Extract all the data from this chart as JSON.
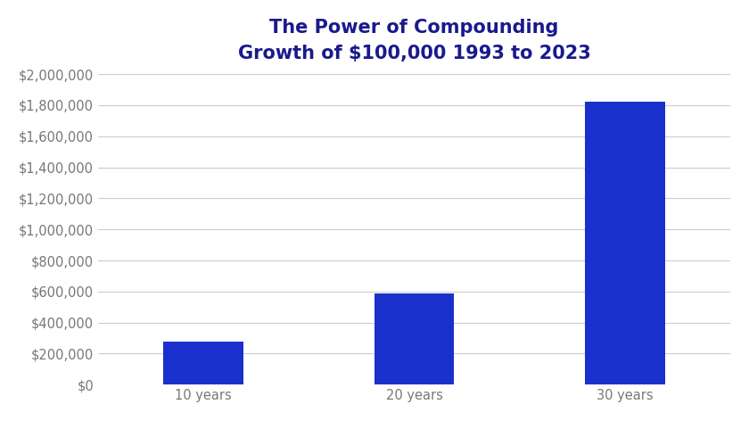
{
  "categories": [
    "10 years",
    "20 years",
    "30 years"
  ],
  "values": [
    280000,
    590000,
    1820000
  ],
  "bar_color": "#1a30cc",
  "title_line1": "The Power of Compounding",
  "title_line2": "Growth of $100,000 1993 to 2023",
  "title_color": "#1a1a8c",
  "background_color": "#ffffff",
  "ylim": [
    0,
    2000000
  ],
  "ytick_step": 200000,
  "grid_color": "#cccccc",
  "tick_label_color": "#777777",
  "bar_width": 0.38,
  "title_fontsize": 15,
  "subtitle_fontsize": 13,
  "tick_fontsize": 10.5
}
